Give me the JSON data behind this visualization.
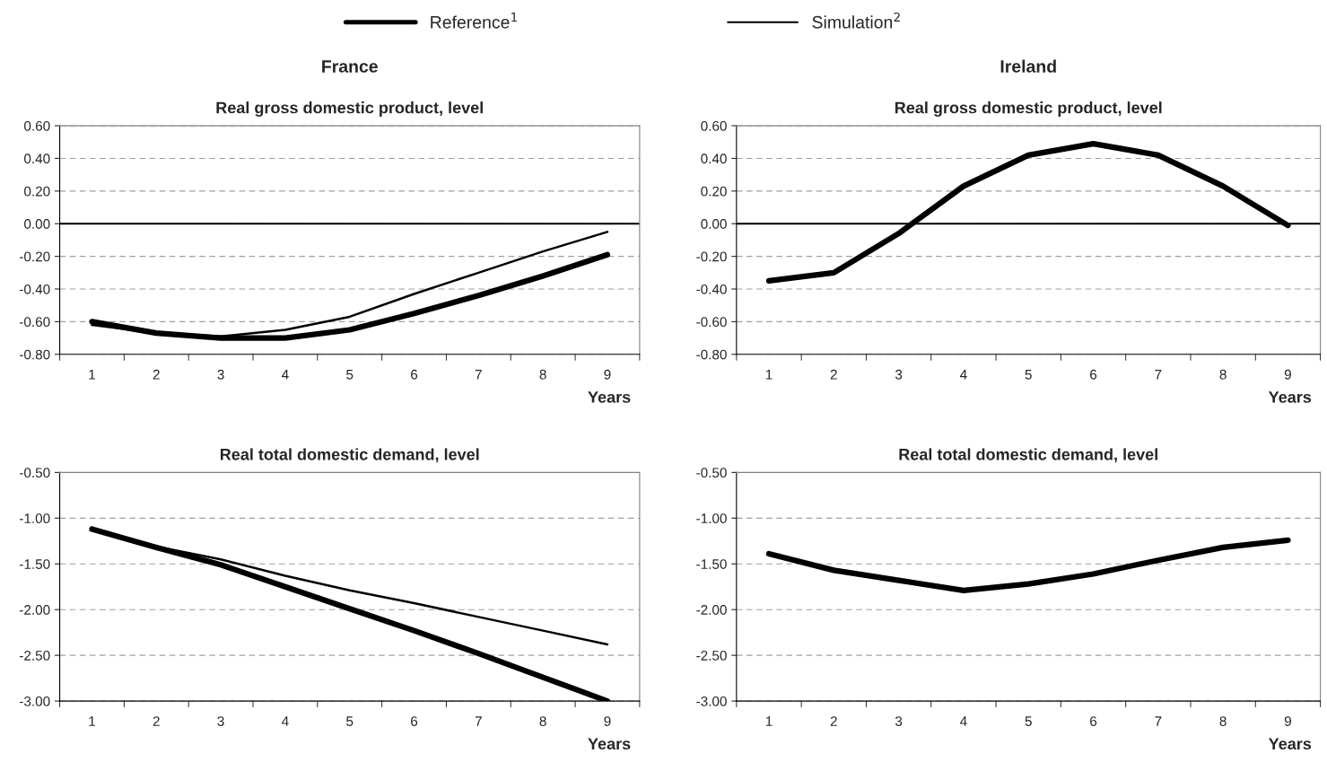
{
  "chart_data": [
    {
      "type": "line",
      "title": "France",
      "subtitle": "Real gross domestic product, level",
      "xlabel": "Years",
      "categories": [
        "1",
        "2",
        "3",
        "4",
        "5",
        "6",
        "7",
        "8",
        "9"
      ],
      "series": [
        {
          "name": "Reference$^{1}$",
          "color": "#000000",
          "values": [
            -0.6,
            -0.67,
            -0.7,
            -0.7,
            -0.65,
            -0.55,
            -0.44,
            -0.32,
            -0.19
          ]
        },
        {
          "name": "Simulation$^{2}$",
          "color": "#000000",
          "values": [
            -0.62,
            -0.67,
            -0.69,
            -0.65,
            -0.57,
            -0.43,
            -0.3,
            -0.17,
            -0.05
          ]
        }
      ],
      "ylim": [
        -0.8,
        0.6
      ],
      "yticks": [
        {
          "value": -0.8,
          "label": "-0.80"
        },
        {
          "value": -0.6,
          "label": "-0.60"
        },
        {
          "value": -0.4,
          "label": "-0.40"
        },
        {
          "value": -0.2,
          "label": "-0.20"
        },
        {
          "value": 0,
          "label": "0.00"
        },
        {
          "value": 0.2,
          "label": "0.20"
        },
        {
          "value": 0.4,
          "label": "0.40"
        },
        {
          "value": 0.6,
          "label": "0.60"
        }
      ],
      "ref_lines": [
        {
          "axis": "y",
          "value": 0,
          "color": "#000000"
        }
      ],
      "grid": "y",
      "legend": "top",
      "line_style": "solid",
      "marker": "none"
    },
    {
      "type": "line",
      "title": "Ireland",
      "subtitle": "Real gross domestic product, level",
      "xlabel": "Years",
      "categories": [
        "1",
        "2",
        "3",
        "4",
        "5",
        "6",
        "7",
        "8",
        "9"
      ],
      "series": [
        {
          "color": "#000000",
          "values": [
            -0.35,
            -0.3,
            -0.06,
            0.23,
            0.42,
            0.49,
            0.42,
            0.23,
            -0.01
          ]
        }
      ],
      "ylim": [
        -0.8,
        0.6
      ],
      "yticks": [
        {
          "value": -0.8,
          "label": "-0.80"
        },
        {
          "value": -0.6,
          "label": "-0.60"
        },
        {
          "value": -0.4,
          "label": "-0.40"
        },
        {
          "value": -0.2,
          "label": "-0.20"
        },
        {
          "value": 0,
          "label": "0.00"
        },
        {
          "value": 0.2,
          "label": "0.20"
        },
        {
          "value": 0.4,
          "label": "0.40"
        },
        {
          "value": 0.6,
          "label": "0.60"
        }
      ],
      "ref_lines": [
        {
          "axis": "y",
          "value": 0,
          "color": "#000000"
        }
      ],
      "grid": "y",
      "line_style": "solid",
      "marker": "none"
    },
    {
      "type": "line",
      "title": "Real total domestic demand, level",
      "xlabel": "Years",
      "categories": [
        "1",
        "2",
        "3",
        "4",
        "5",
        "6",
        "7",
        "8",
        "9"
      ],
      "series": [
        {
          "color": "#000000",
          "values": [
            -1.12,
            -1.32,
            -1.51,
            -1.75,
            -1.99,
            -2.23,
            -2.48,
            -2.74,
            -3.0
          ]
        },
        {
          "color": "#000000",
          "values": [
            -1.12,
            -1.31,
            -1.45,
            -1.63,
            -1.79,
            -1.93,
            -2.08,
            -2.23,
            -2.38
          ]
        }
      ],
      "ylim": [
        -3.0,
        -0.5
      ],
      "yticks": [
        {
          "value": -3.0,
          "label": "-3.00"
        },
        {
          "value": -2.5,
          "label": "-2.50"
        },
        {
          "value": -2.0,
          "label": "-2.00"
        },
        {
          "value": -1.5,
          "label": "-1.50"
        },
        {
          "value": -1.0,
          "label": "-1.00"
        },
        {
          "value": -0.5,
          "label": "-0.50"
        }
      ],
      "grid": "y",
      "line_style": "solid",
      "marker": "none"
    },
    {
      "type": "line",
      "title": "Real total domestic demand, level",
      "xlabel": "Years",
      "categories": [
        "1",
        "2",
        "3",
        "4",
        "5",
        "6",
        "7",
        "8",
        "9"
      ],
      "series": [
        {
          "color": "#000000",
          "values": [
            -1.39,
            -1.57,
            -1.68,
            -1.79,
            -1.72,
            -1.61,
            -1.46,
            -1.32,
            -1.24
          ]
        }
      ],
      "ylim": [
        -3.0,
        -0.5
      ],
      "yticks": [
        {
          "value": -3.0,
          "label": "-3.00"
        },
        {
          "value": -2.5,
          "label": "-2.50"
        },
        {
          "value": -2.0,
          "label": "-2.00"
        },
        {
          "value": -1.5,
          "label": "-1.50"
        },
        {
          "value": -1.0,
          "label": "-1.00"
        },
        {
          "value": -0.5,
          "label": "-0.50"
        }
      ],
      "grid": "y",
      "line_style": "solid",
      "marker": "none"
    }
  ]
}
